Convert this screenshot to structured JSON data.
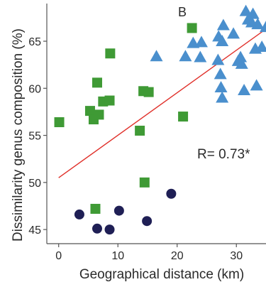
{
  "chart_data": {
    "type": "scatter",
    "panel_label": "B",
    "xlabel": "Geographical distance (km)",
    "ylabel": "Dissimilarity genus composition (%)",
    "xlim": [
      -2,
      35
    ],
    "ylim": [
      43.5,
      69
    ],
    "xticks": [
      0,
      10,
      20,
      30
    ],
    "yticks": [
      45,
      50,
      55,
      60,
      65
    ],
    "annotation": "R= 0.73*",
    "trend_line": {
      "color": "#e0302a",
      "x": [
        0,
        35
      ],
      "y": [
        50.5,
        66.3
      ]
    },
    "series": [
      {
        "marker": "square",
        "color": "#3f9a35",
        "points": [
          [
            0.1,
            56.4
          ],
          [
            5.3,
            57.6
          ],
          [
            5.9,
            56.7
          ],
          [
            6.2,
            47.2
          ],
          [
            6.5,
            60.6
          ],
          [
            6.8,
            57.2
          ],
          [
            7.5,
            58.6
          ],
          [
            8.6,
            58.7
          ],
          [
            8.7,
            63.7
          ],
          [
            13.7,
            55.5
          ],
          [
            14.3,
            59.7
          ],
          [
            14.5,
            50.0
          ],
          [
            15.2,
            59.6
          ],
          [
            21.0,
            57.0
          ],
          [
            22.5,
            66.4
          ]
        ]
      },
      {
        "marker": "circle",
        "color": "#1f1f55",
        "points": [
          [
            3.5,
            46.6
          ],
          [
            6.5,
            45.1
          ],
          [
            8.6,
            45.0
          ],
          [
            10.2,
            47.0
          ],
          [
            14.9,
            45.9
          ],
          [
            19.0,
            48.8
          ]
        ]
      },
      {
        "marker": "triangle",
        "color": "#4a8fcd",
        "points": [
          [
            16.5,
            63.4
          ],
          [
            21.4,
            63.4
          ],
          [
            22.7,
            64.8
          ],
          [
            23.9,
            63.3
          ],
          [
            24.1,
            64.9
          ],
          [
            26.9,
            63.0
          ],
          [
            27.0,
            65.5
          ],
          [
            27.3,
            61.5
          ],
          [
            27.4,
            60.1
          ],
          [
            27.6,
            59.0
          ],
          [
            27.8,
            66.7
          ],
          [
            27.6,
            65.0
          ],
          [
            29.5,
            65.8
          ],
          [
            30.3,
            62.9
          ],
          [
            30.7,
            63.3
          ],
          [
            30.9,
            62.6
          ],
          [
            31.3,
            59.8
          ],
          [
            31.6,
            68.2
          ],
          [
            32.0,
            67.3
          ],
          [
            32.6,
            67.0
          ],
          [
            32.8,
            67.9
          ],
          [
            33.2,
            64.2
          ],
          [
            33.4,
            60.3
          ],
          [
            33.6,
            66.8
          ],
          [
            34.3,
            64.4
          ],
          [
            35.0,
            66.5
          ]
        ]
      }
    ]
  }
}
